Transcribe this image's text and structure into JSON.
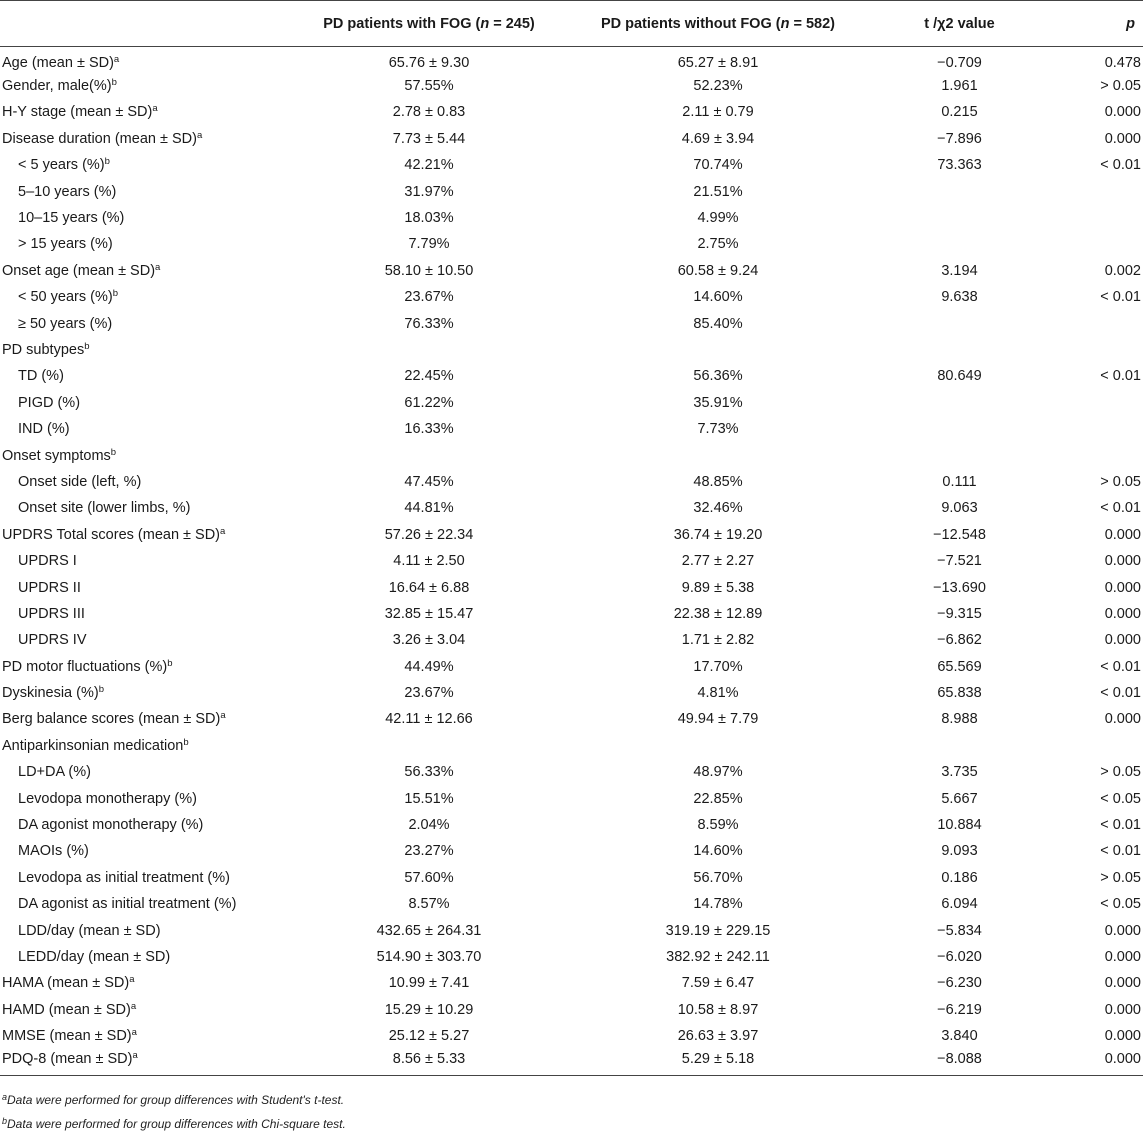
{
  "header": {
    "col0": "",
    "col1_prefix": "PD patients with FOG (",
    "col1_n": "n",
    "col1_suffix": " = 245)",
    "col2_prefix": "PD patients without FOG (",
    "col2_n": "n",
    "col2_suffix": " = 582)",
    "col3": "t /χ2 value",
    "col4": "p"
  },
  "rows": [
    {
      "label": "Age (mean ± SD)",
      "sup": "a",
      "indent": false,
      "fog": "65.76 ± 9.30",
      "nofog": "65.27 ± 8.91",
      "stat": "−0.709",
      "p": "0.478"
    },
    {
      "label": "Gender, male(%)",
      "sup": "b",
      "indent": false,
      "fog": "57.55%",
      "nofog": "52.23%",
      "stat": "1.961",
      "p": "> 0.05"
    },
    {
      "label": "H-Y stage (mean ± SD)",
      "sup": "a",
      "indent": false,
      "fog": "2.78 ± 0.83",
      "nofog": "2.11 ± 0.79",
      "stat": "0.215",
      "p": "0.000"
    },
    {
      "label": "Disease duration (mean ± SD)",
      "sup": "a",
      "indent": false,
      "fog": "7.73 ± 5.44",
      "nofog": "4.69 ± 3.94",
      "stat": "−7.896",
      "p": "0.000"
    },
    {
      "label": "< 5 years (%)",
      "sup": "b",
      "indent": true,
      "fog": "42.21%",
      "nofog": "70.74%",
      "stat": "73.363",
      "p": "< 0.01"
    },
    {
      "label": "5–10 years (%)",
      "sup": "",
      "indent": true,
      "fog": "31.97%",
      "nofog": "21.51%",
      "stat": "",
      "p": ""
    },
    {
      "label": "10–15 years (%)",
      "sup": "",
      "indent": true,
      "fog": "18.03%",
      "nofog": "4.99%",
      "stat": "",
      "p": ""
    },
    {
      "label": "> 15 years (%)",
      "sup": "",
      "indent": true,
      "fog": "7.79%",
      "nofog": "2.75%",
      "stat": "",
      "p": ""
    },
    {
      "label": "Onset age (mean ± SD)",
      "sup": "a",
      "indent": false,
      "fog": "58.10 ± 10.50",
      "nofog": "60.58 ± 9.24",
      "stat": "3.194",
      "p": "0.002"
    },
    {
      "label": "< 50 years (%)",
      "sup": "b",
      "indent": true,
      "fog": "23.67%",
      "nofog": "14.60%",
      "stat": "9.638",
      "p": "< 0.01"
    },
    {
      "label": "≥ 50 years (%)",
      "sup": "",
      "indent": true,
      "fog": "76.33%",
      "nofog": "85.40%",
      "stat": "",
      "p": ""
    },
    {
      "label": "PD subtypes",
      "sup": "b",
      "indent": false,
      "fog": "",
      "nofog": "",
      "stat": "",
      "p": ""
    },
    {
      "label": "TD (%)",
      "sup": "",
      "indent": true,
      "fog": "22.45%",
      "nofog": "56.36%",
      "stat": "80.649",
      "p": "< 0.01"
    },
    {
      "label": "PIGD (%)",
      "sup": "",
      "indent": true,
      "fog": "61.22%",
      "nofog": "35.91%",
      "stat": "",
      "p": ""
    },
    {
      "label": "IND (%)",
      "sup": "",
      "indent": true,
      "fog": "16.33%",
      "nofog": "7.73%",
      "stat": "",
      "p": ""
    },
    {
      "label": "Onset symptoms",
      "sup": "b",
      "indent": false,
      "fog": "",
      "nofog": "",
      "stat": "",
      "p": ""
    },
    {
      "label": "Onset side (left, %)",
      "sup": "",
      "indent": true,
      "fog": "47.45%",
      "nofog": "48.85%",
      "stat": "0.111",
      "p": "> 0.05"
    },
    {
      "label": "Onset site (lower limbs, %)",
      "sup": "",
      "indent": true,
      "fog": "44.81%",
      "nofog": "32.46%",
      "stat": "9.063",
      "p": "< 0.01"
    },
    {
      "label": "UPDRS Total scores (mean ± SD)",
      "sup": "a",
      "indent": false,
      "fog": "57.26 ± 22.34",
      "nofog": "36.74 ± 19.20",
      "stat": "−12.548",
      "p": "0.000"
    },
    {
      "label": "UPDRS I",
      "sup": "",
      "indent": true,
      "fog": "4.11 ± 2.50",
      "nofog": "2.77 ± 2.27",
      "stat": "−7.521",
      "p": "0.000"
    },
    {
      "label": "UPDRS II",
      "sup": "",
      "indent": true,
      "fog": "16.64 ± 6.88",
      "nofog": "9.89 ± 5.38",
      "stat": "−13.690",
      "p": "0.000"
    },
    {
      "label": "UPDRS III",
      "sup": "",
      "indent": true,
      "fog": "32.85 ± 15.47",
      "nofog": "22.38 ± 12.89",
      "stat": "−9.315",
      "p": "0.000"
    },
    {
      "label": "UPDRS IV",
      "sup": "",
      "indent": true,
      "fog": "3.26 ± 3.04",
      "nofog": "1.71 ± 2.82",
      "stat": "−6.862",
      "p": "0.000"
    },
    {
      "label": "PD motor fluctuations (%)",
      "sup": "b",
      "indent": false,
      "fog": "44.49%",
      "nofog": "17.70%",
      "stat": "65.569",
      "p": "< 0.01"
    },
    {
      "label": "Dyskinesia (%)",
      "sup": "b",
      "indent": false,
      "fog": "23.67%",
      "nofog": "4.81%",
      "stat": "65.838",
      "p": "< 0.01"
    },
    {
      "label": "Berg balance scores (mean ± SD)",
      "sup": "a",
      "indent": false,
      "fog": "42.11 ± 12.66",
      "nofog": "49.94 ± 7.79",
      "stat": "8.988",
      "p": "0.000"
    },
    {
      "label": "Antiparkinsonian medication",
      "sup": "b",
      "indent": false,
      "fog": "",
      "nofog": "",
      "stat": "",
      "p": ""
    },
    {
      "label": "LD+DA (%)",
      "sup": "",
      "indent": true,
      "fog": "56.33%",
      "nofog": "48.97%",
      "stat": "3.735",
      "p": "> 0.05"
    },
    {
      "label": "Levodopa monotherapy (%)",
      "sup": "",
      "indent": true,
      "fog": "15.51%",
      "nofog": "22.85%",
      "stat": "5.667",
      "p": "< 0.05"
    },
    {
      "label": "DA agonist monotherapy (%)",
      "sup": "",
      "indent": true,
      "fog": "2.04%",
      "nofog": "8.59%",
      "stat": "10.884",
      "p": "< 0.01"
    },
    {
      "label": "MAOIs (%)",
      "sup": "",
      "indent": true,
      "fog": "23.27%",
      "nofog": "14.60%",
      "stat": "9.093",
      "p": "< 0.01"
    },
    {
      "label": "Levodopa as initial treatment (%)",
      "sup": "",
      "indent": true,
      "fog": "57.60%",
      "nofog": "56.70%",
      "stat": "0.186",
      "p": "> 0.05"
    },
    {
      "label": "DA agonist as initial treatment (%)",
      "sup": "",
      "indent": true,
      "fog": "8.57%",
      "nofog": "14.78%",
      "stat": "6.094",
      "p": "< 0.05"
    },
    {
      "label": "LDD/day (mean ± SD)",
      "sup": "",
      "indent": true,
      "fog": "432.65 ± 264.31",
      "nofog": "319.19 ± 229.15",
      "stat": "−5.834",
      "p": "0.000"
    },
    {
      "label": "LEDD/day (mean ± SD)",
      "sup": "",
      "indent": true,
      "fog": "514.90 ± 303.70",
      "nofog": "382.92 ± 242.11",
      "stat": "−6.020",
      "p": "0.000"
    },
    {
      "label": "HAMA (mean ± SD)",
      "sup": "a",
      "indent": false,
      "fog": "10.99 ± 7.41",
      "nofog": "7.59 ± 6.47",
      "stat": "−6.230",
      "p": "0.000"
    },
    {
      "label": "HAMD (mean ± SD)",
      "sup": "a",
      "indent": false,
      "fog": "15.29 ± 10.29",
      "nofog": "10.58 ± 8.97",
      "stat": "−6.219",
      "p": "0.000"
    },
    {
      "label": "MMSE (mean ± SD)",
      "sup": "a",
      "indent": false,
      "fog": "25.12 ± 5.27",
      "nofog": "26.63 ± 3.97",
      "stat": "3.840",
      "p": "0.000"
    },
    {
      "label": "PDQ-8 (mean ± SD)",
      "sup": "a",
      "indent": false,
      "fog": "8.56 ± 5.33",
      "nofog": "5.29 ± 5.18",
      "stat": "−8.088",
      "p": "0.000"
    }
  ],
  "footnotes": [
    {
      "sup": "a",
      "text": "Data were performed for group differences with Student's t-test."
    },
    {
      "sup": "b",
      "text": "Data were performed for group differences with Chi-square test."
    }
  ]
}
